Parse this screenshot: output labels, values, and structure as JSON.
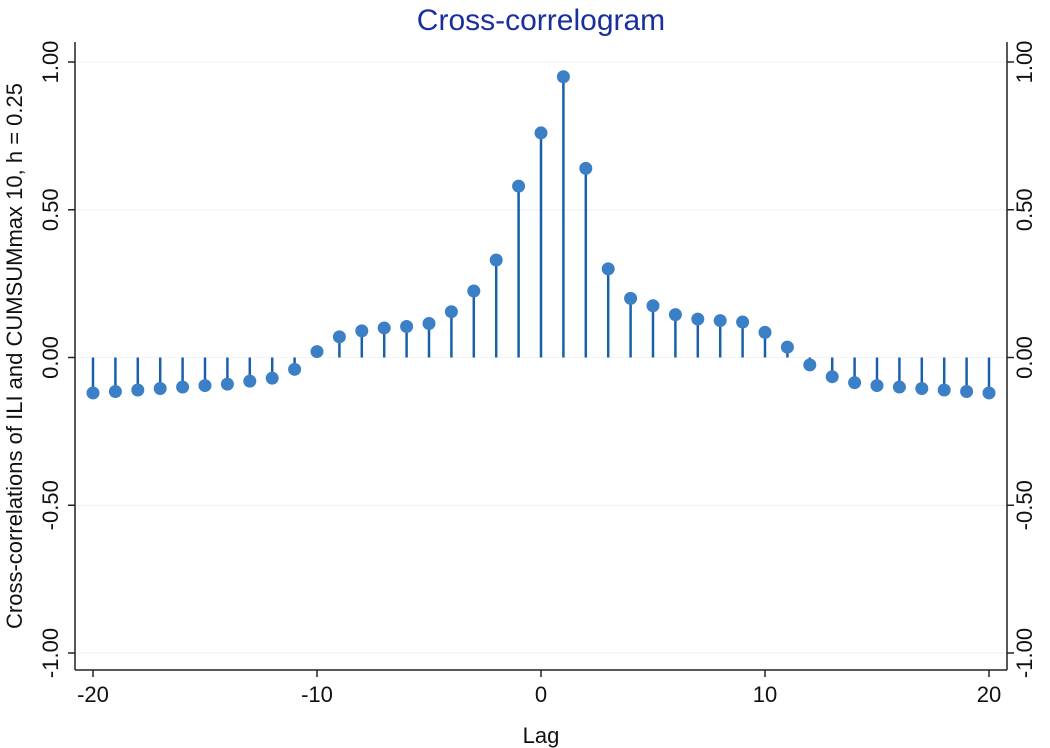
{
  "chart_data": {
    "type": "scatter",
    "style": "stem",
    "title": "Cross-correlogram",
    "xlabel": "Lag",
    "ylabel": "Cross-correlations of ILI and CUMSUMmax 10, h = 0.25",
    "xlim": [
      -20,
      20
    ],
    "ylim": [
      -1,
      1
    ],
    "xticks": [
      -20,
      -10,
      0,
      10,
      20
    ],
    "xtick_labels": [
      "-20",
      "-10",
      "0",
      "10",
      "20"
    ],
    "yticks": [
      -1,
      -0.5,
      0,
      0.5,
      1
    ],
    "ytick_labels": [
      "-1.00",
      "-0.50",
      "0.00",
      "0.50",
      "1.00"
    ],
    "right_axis_mirrored": true,
    "grid": true,
    "marker_color": "#3b7fc7",
    "stem_color": "#1b5fa8",
    "title_color": "#1a2f9e",
    "x": [
      -20,
      -19,
      -18,
      -17,
      -16,
      -15,
      -14,
      -13,
      -12,
      -11,
      -10,
      -9,
      -8,
      -7,
      -6,
      -5,
      -4,
      -3,
      -2,
      -1,
      0,
      1,
      2,
      3,
      4,
      5,
      6,
      7,
      8,
      9,
      10,
      11,
      12,
      13,
      14,
      15,
      16,
      17,
      18,
      19,
      20
    ],
    "y": [
      -0.12,
      -0.115,
      -0.11,
      -0.105,
      -0.1,
      -0.095,
      -0.09,
      -0.08,
      -0.07,
      -0.04,
      0.02,
      0.07,
      0.09,
      0.1,
      0.105,
      0.115,
      0.155,
      0.225,
      0.33,
      0.58,
      0.76,
      0.95,
      0.64,
      0.3,
      0.2,
      0.175,
      0.145,
      0.13,
      0.125,
      0.12,
      0.085,
      0.035,
      -0.025,
      -0.065,
      -0.085,
      -0.095,
      -0.1,
      -0.105,
      -0.11,
      -0.115,
      -0.12
    ]
  }
}
